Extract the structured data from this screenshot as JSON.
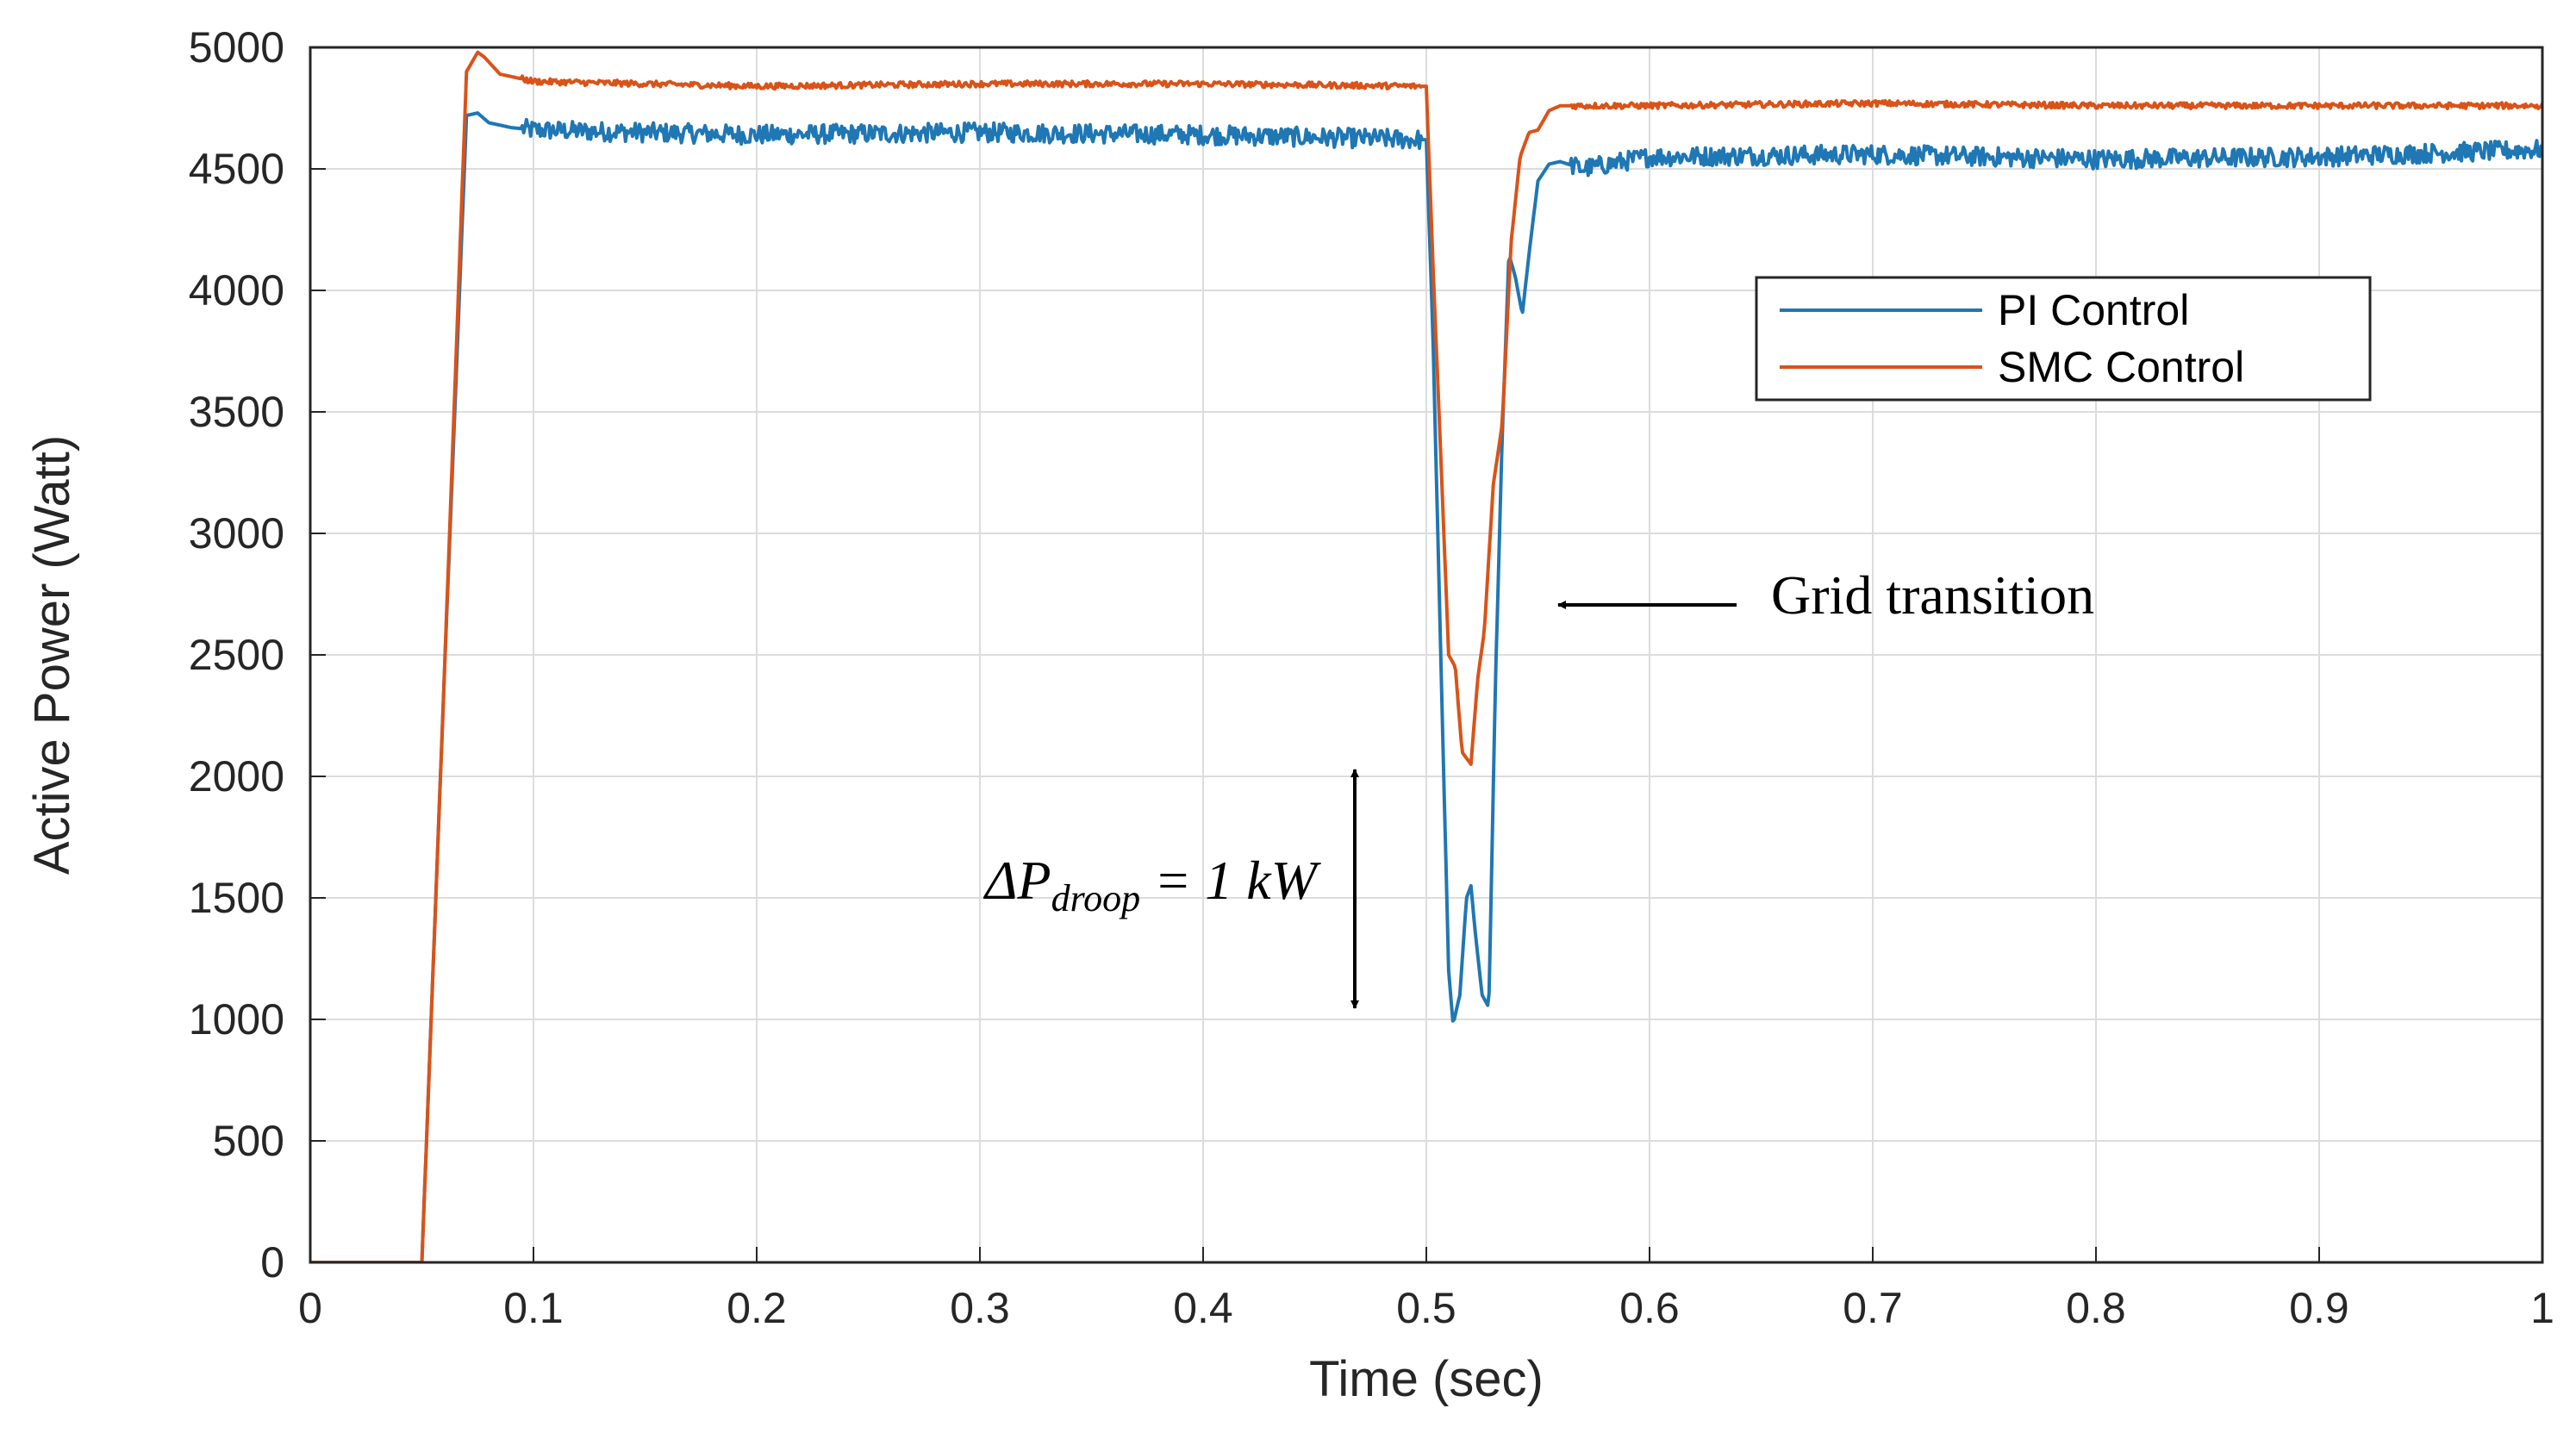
{
  "chart_data": {
    "type": "line",
    "title": "",
    "xlabel": "Time (sec)",
    "ylabel": "Active Power (Watt)",
    "xlim": [
      0,
      1
    ],
    "ylim": [
      0,
      5000
    ],
    "xticks": [
      0,
      0.1,
      0.2,
      0.3,
      0.4,
      0.5,
      0.6,
      0.7,
      0.8,
      0.9,
      1
    ],
    "xtick_labels": [
      "0",
      "0.1",
      "0.2",
      "0.3",
      "0.4",
      "0.5",
      "0.6",
      "0.7",
      "0.8",
      "0.9",
      "1"
    ],
    "yticks": [
      0,
      500,
      1000,
      1500,
      2000,
      2500,
      3000,
      3500,
      4000,
      4500,
      5000
    ],
    "ytick_labels": [
      "0",
      "500",
      "1000",
      "1500",
      "2000",
      "2500",
      "3000",
      "3500",
      "4000",
      "4500",
      "5000"
    ],
    "grid": true,
    "legend_position": "upper-right",
    "series": [
      {
        "name": "PI Control",
        "color": "#1f77b4",
        "noise": 40,
        "x": [
          0,
          0.05,
          0.06,
          0.07,
          0.075,
          0.08,
          0.09,
          0.1,
          0.2,
          0.3,
          0.4,
          0.5,
          0.503,
          0.507,
          0.51,
          0.512,
          0.515,
          0.518,
          0.52,
          0.522,
          0.525,
          0.528,
          0.531,
          0.534,
          0.537,
          0.54,
          0.543,
          0.546,
          0.55,
          0.555,
          0.56,
          0.57,
          0.6,
          0.7,
          0.8,
          0.9,
          1.0
        ],
        "y": [
          0,
          0,
          2400,
          4720,
          4730,
          4690,
          4670,
          4660,
          4640,
          4650,
          4640,
          4620,
          3800,
          2300,
          1200,
          980,
          1100,
          1500,
          1550,
          1350,
          1100,
          1050,
          2400,
          3400,
          4150,
          4050,
          3900,
          4150,
          4450,
          4520,
          4530,
          4500,
          4550,
          4560,
          4540,
          4550,
          4580
        ]
      },
      {
        "name": "SMC Control",
        "color": "#d95319",
        "noise": 12,
        "x": [
          0,
          0.05,
          0.06,
          0.07,
          0.075,
          0.078,
          0.085,
          0.1,
          0.2,
          0.3,
          0.4,
          0.5,
          0.503,
          0.507,
          0.51,
          0.513,
          0.516,
          0.52,
          0.523,
          0.526,
          0.53,
          0.534,
          0.538,
          0.542,
          0.546,
          0.55,
          0.555,
          0.56,
          0.6,
          0.7,
          0.8,
          0.9,
          1.0
        ],
        "y": [
          0,
          0,
          2400,
          4900,
          4980,
          4960,
          4890,
          4860,
          4840,
          4850,
          4850,
          4840,
          4100,
          3200,
          2500,
          2450,
          2100,
          2050,
          2400,
          2600,
          3200,
          3450,
          4200,
          4550,
          4650,
          4660,
          4740,
          4760,
          4760,
          4770,
          4760,
          4760,
          4760
        ]
      }
    ],
    "annotations": [
      {
        "name": "grid-transition",
        "text": "Grid transition",
        "points_to": {
          "x": 0.56,
          "y": 2700
        }
      },
      {
        "name": "droop",
        "base": "ΔP",
        "subscript": "droop",
        "rest": " = 1 kW",
        "from_y": 1000,
        "to_y": 2000,
        "at_x": 0.468
      }
    ]
  }
}
